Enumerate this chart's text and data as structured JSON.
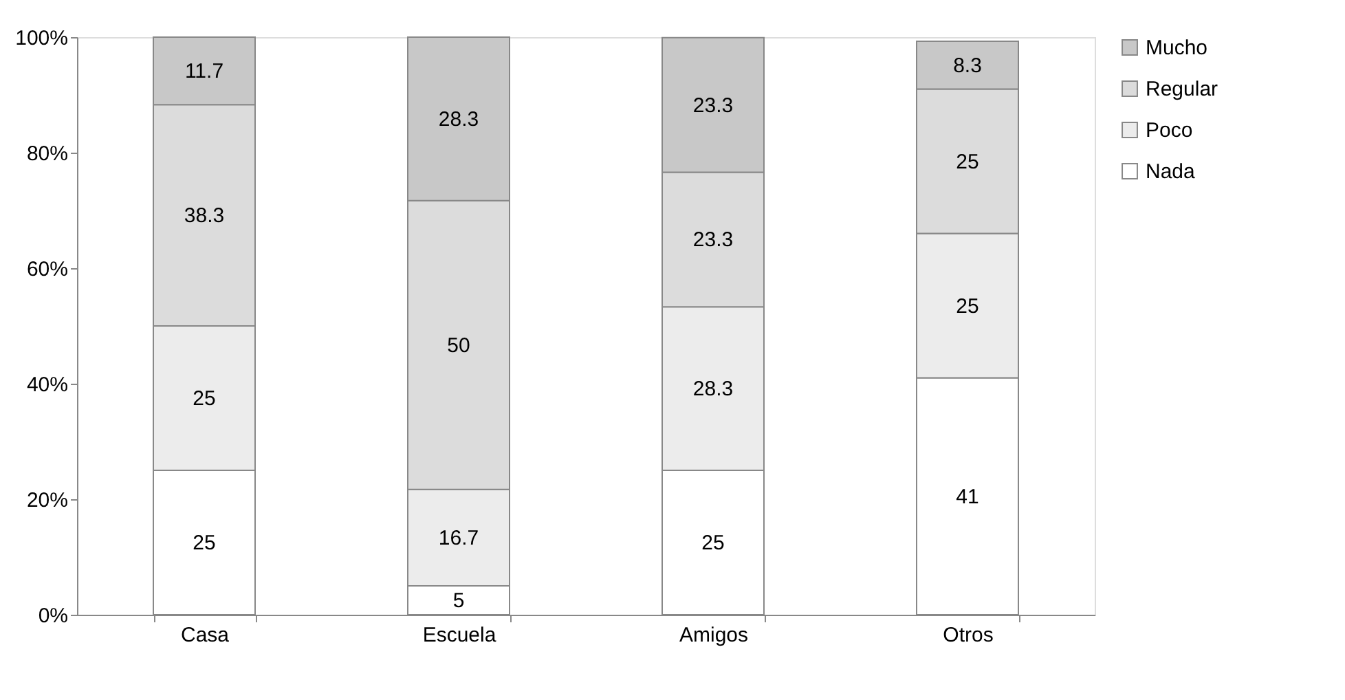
{
  "chart_data": {
    "type": "bar",
    "stacked": true,
    "categories": [
      "Casa",
      "Escuela",
      "Amigos",
      "Otros"
    ],
    "series": [
      {
        "name": "Nada",
        "color": "#ffffff",
        "values": [
          25,
          5,
          25,
          41
        ]
      },
      {
        "name": "Poco",
        "color": "#ececec",
        "values": [
          25,
          16.7,
          28.3,
          25
        ]
      },
      {
        "name": "Regular",
        "color": "#dcdcdc",
        "values": [
          38.3,
          50,
          23.3,
          25
        ]
      },
      {
        "name": "Mucho",
        "color": "#c8c8c8",
        "values": [
          11.7,
          28.3,
          23.3,
          8.3
        ]
      }
    ],
    "ylim": [
      0,
      100
    ],
    "yticks": [
      {
        "value": 0,
        "label": "0%"
      },
      {
        "value": 20,
        "label": "20%"
      },
      {
        "value": 40,
        "label": "40%"
      },
      {
        "value": 60,
        "label": "60%"
      },
      {
        "value": 80,
        "label": "80%"
      },
      {
        "value": 100,
        "label": "100%"
      }
    ],
    "data_labels": true,
    "legend": "right",
    "grid": false
  }
}
